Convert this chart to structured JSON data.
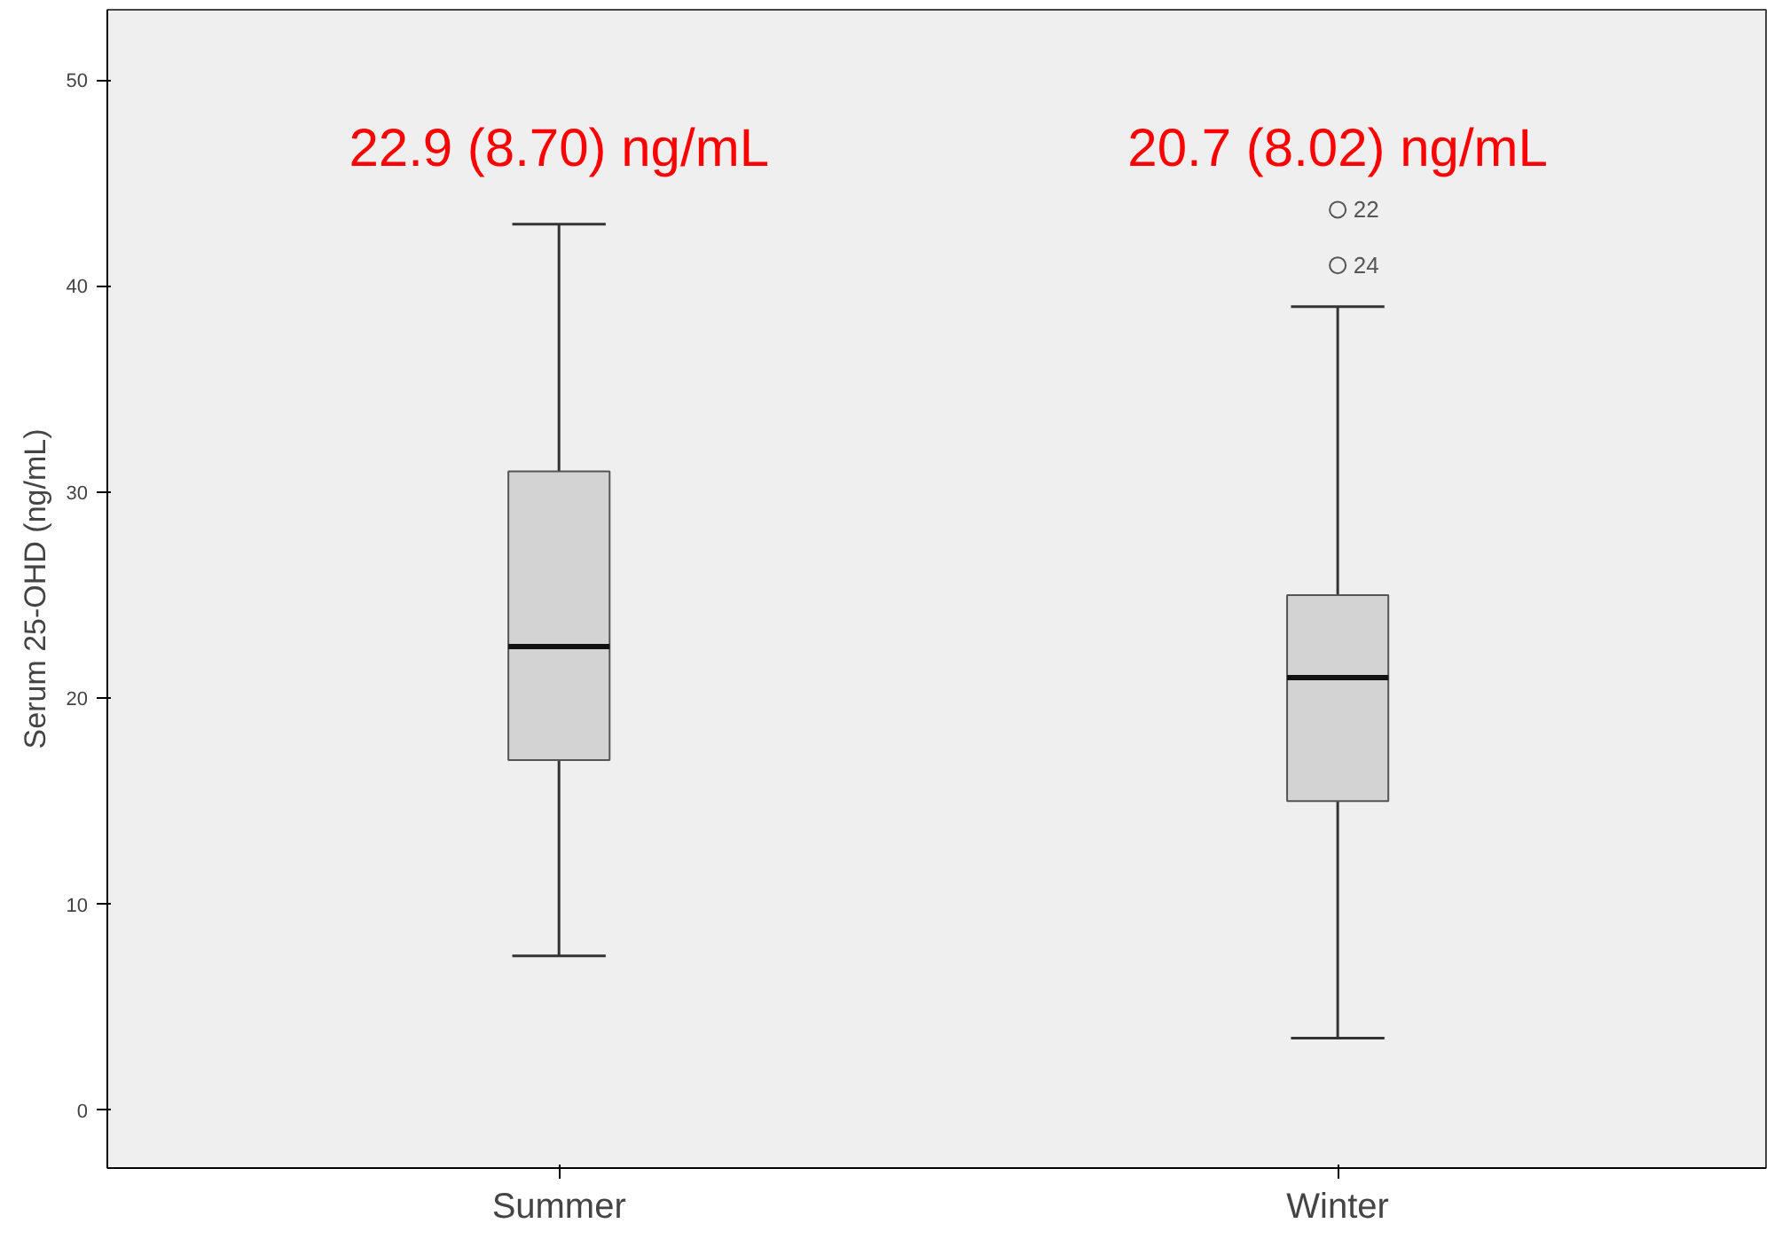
{
  "chart_data": {
    "type": "box",
    "ylabel": "Serum 25-OHD (ng/mL)",
    "categories": [
      "Summer",
      "Winter"
    ],
    "boxes": [
      {
        "low": 7.5,
        "q1": 17,
        "median": 22.5,
        "q3": 31,
        "high": 43
      },
      {
        "low": 3.5,
        "q1": 15,
        "median": 21,
        "q3": 25,
        "high": 39,
        "outliers": [
          43.7,
          41
        ]
      }
    ],
    "color": "#d3d3d3",
    "ylim": [
      -2.8,
      53.4
    ],
    "yticks": [
      0,
      10,
      20,
      30,
      40,
      50
    ],
    "grid": false,
    "annotations": [
      "22.9 (8.70) ng/mL",
      "20.7 (8.02) ng/mL",
      "22",
      "24"
    ]
  }
}
